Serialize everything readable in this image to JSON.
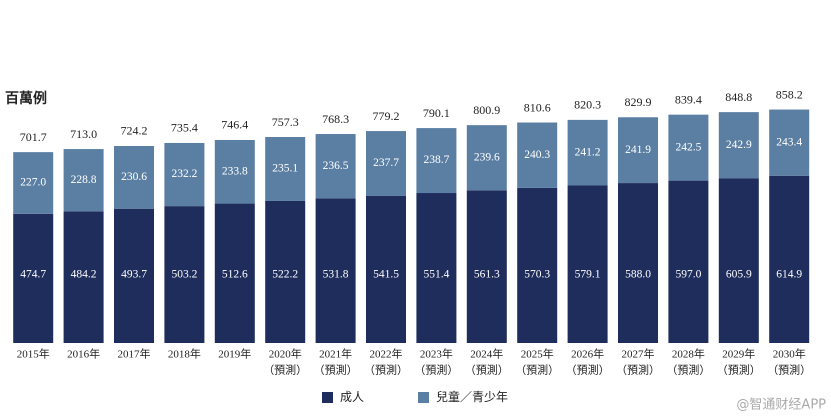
{
  "chart_data": {
    "type": "stacked_bar",
    "y_label": "百萬例",
    "categories": [
      [
        "2015年"
      ],
      [
        "2016年"
      ],
      [
        "2017年"
      ],
      [
        "2018年"
      ],
      [
        "2019年"
      ],
      [
        "2020年",
        "（預測）"
      ],
      [
        "2021年",
        "（預測）"
      ],
      [
        "2022年",
        "（預測）"
      ],
      [
        "2023年",
        "（預測）"
      ],
      [
        "2024年",
        "（預測）"
      ],
      [
        "2025年",
        "（預測）"
      ],
      [
        "2026年",
        "（預測）"
      ],
      [
        "2027年",
        "（預測）"
      ],
      [
        "2028年",
        "（預測）"
      ],
      [
        "2029年",
        "（預測）"
      ],
      [
        "2030年",
        "（預測）"
      ]
    ],
    "series": [
      {
        "name": "成人",
        "color": "#1f2d5c",
        "values": [
          474.7,
          484.2,
          493.7,
          503.2,
          512.6,
          522.2,
          531.8,
          541.5,
          551.4,
          561.3,
          570.3,
          579.1,
          588.0,
          597.0,
          605.9,
          614.9
        ],
        "value_labels": [
          "474.7",
          "484.2",
          "493.7",
          "503.2",
          "512.6",
          "522.2",
          "531.8",
          "541.5",
          "551.4",
          "561.3",
          "570.3",
          "579.1",
          "588.0",
          "597.0",
          "605.9",
          "614.9"
        ]
      },
      {
        "name": "兒童／青少年",
        "color": "#5b7fa3",
        "values": [
          227.0,
          228.8,
          230.6,
          232.2,
          233.8,
          235.1,
          236.5,
          237.7,
          238.7,
          239.6,
          240.3,
          241.2,
          241.9,
          242.5,
          242.9,
          243.4
        ],
        "value_labels": [
          "227.0",
          "228.8",
          "230.6",
          "232.2",
          "233.8",
          "235.1",
          "236.5",
          "237.7",
          "238.7",
          "239.6",
          "240.3",
          "241.2",
          "241.9",
          "242.5",
          "242.9",
          "243.4"
        ]
      }
    ],
    "totals": [
      701.7,
      713.0,
      724.2,
      735.4,
      746.4,
      757.3,
      768.3,
      779.2,
      790.1,
      800.9,
      810.6,
      820.3,
      829.9,
      839.4,
      848.8,
      858.2
    ],
    "total_labels": [
      "701.7",
      "713.0",
      "724.2",
      "735.4",
      "746.4",
      "757.3",
      "768.3",
      "779.2",
      "790.1",
      "800.9",
      "810.6",
      "820.3",
      "829.9",
      "839.4",
      "848.8",
      "858.2"
    ],
    "watermark": "@智通财经APP"
  }
}
